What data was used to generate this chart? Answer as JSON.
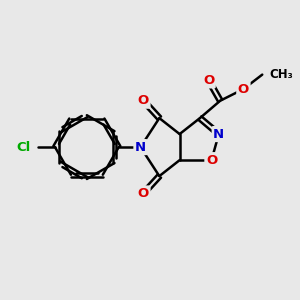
{
  "background_color": "#e8e8e8",
  "atom_colors": {
    "C": "#000000",
    "N": "#0000cc",
    "O": "#dd0000",
    "Cl": "#00aa00"
  },
  "bond_color": "#000000",
  "bond_width": 1.8
}
